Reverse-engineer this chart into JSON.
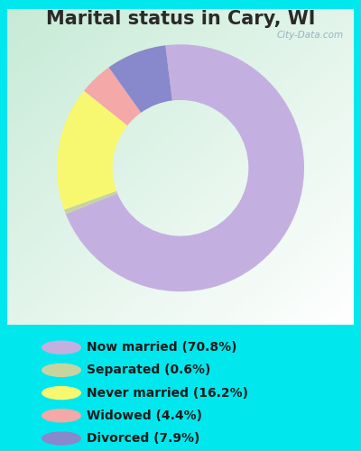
{
  "title": "Marital status in Cary, WI",
  "background_outer": "#00e8ee",
  "chart_bg_color": "#e8f5e8",
  "slices": [
    {
      "label": "Now married (70.8%)",
      "value": 70.8,
      "color": "#c4b0e0"
    },
    {
      "label": "Separated (0.6%)",
      "value": 0.6,
      "color": "#c8d4a0"
    },
    {
      "label": "Never married (16.2%)",
      "value": 16.2,
      "color": "#f8f870"
    },
    {
      "label": "Widowed (4.4%)",
      "value": 4.4,
      "color": "#f4a8a8"
    },
    {
      "label": "Divorced (7.9%)",
      "value": 7.9,
      "color": "#8888cc"
    }
  ],
  "legend_colors": [
    "#c4b0e0",
    "#c8d4a0",
    "#f8f870",
    "#f4a8a8",
    "#8888cc"
  ],
  "legend_labels": [
    "Now married (70.8%)",
    "Separated (0.6%)",
    "Never married (16.2%)",
    "Widowed (4.4%)",
    "Divorced (7.9%)"
  ],
  "title_fontsize": 15,
  "title_color": "#2a2a2a",
  "watermark": "City-Data.com",
  "donut_width": 0.45,
  "start_angle": 97
}
